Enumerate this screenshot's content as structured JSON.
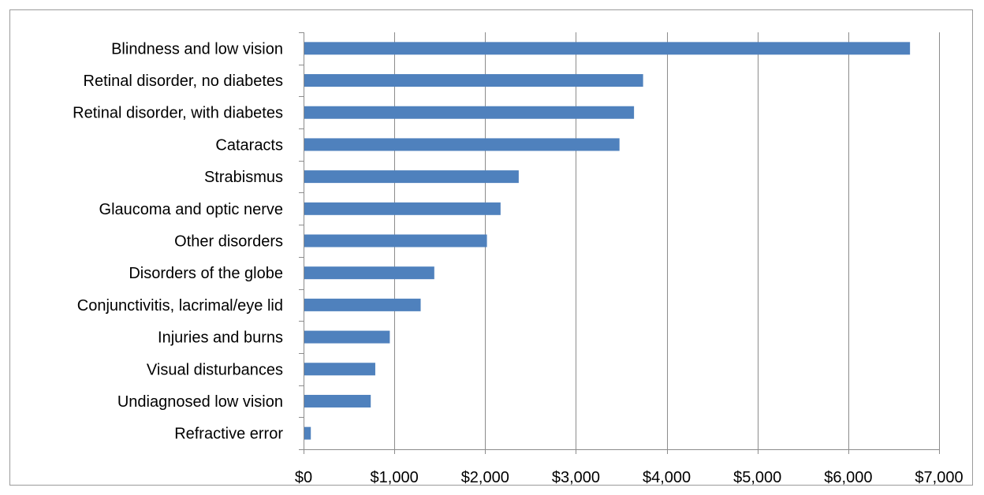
{
  "chart_data": {
    "type": "bar",
    "orientation": "horizontal",
    "title": "",
    "xlabel": "",
    "ylabel": "",
    "categories": [
      "Blindness and low vision",
      "Retinal disorder, no diabetes",
      "Retinal disorder, with diabetes",
      "Cataracts",
      "Strabismus",
      "Glaucoma and optic nerve",
      "Other disorders",
      "Disorders of the globe",
      "Conjunctivitis, lacrimal/eye lid",
      "Injuries and burns",
      "Visual disturbances",
      "Undiagnosed low vision",
      "Refractive error"
    ],
    "values": [
      6680,
      3740,
      3640,
      3480,
      2370,
      2170,
      2020,
      1440,
      1290,
      950,
      790,
      740,
      80
    ],
    "xlim": [
      0,
      7000
    ],
    "xticks": [
      0,
      1000,
      2000,
      3000,
      4000,
      5000,
      6000,
      7000
    ],
    "xtick_labels": [
      "$0",
      "$1,000",
      "$2,000",
      "$3,000",
      "$4,000",
      "$5,000",
      "$6,000",
      "$7,000"
    ],
    "grid": "vertical",
    "legend": "none",
    "bar_color": "#4f81bd",
    "grid_color": "#8c8c8c"
  }
}
